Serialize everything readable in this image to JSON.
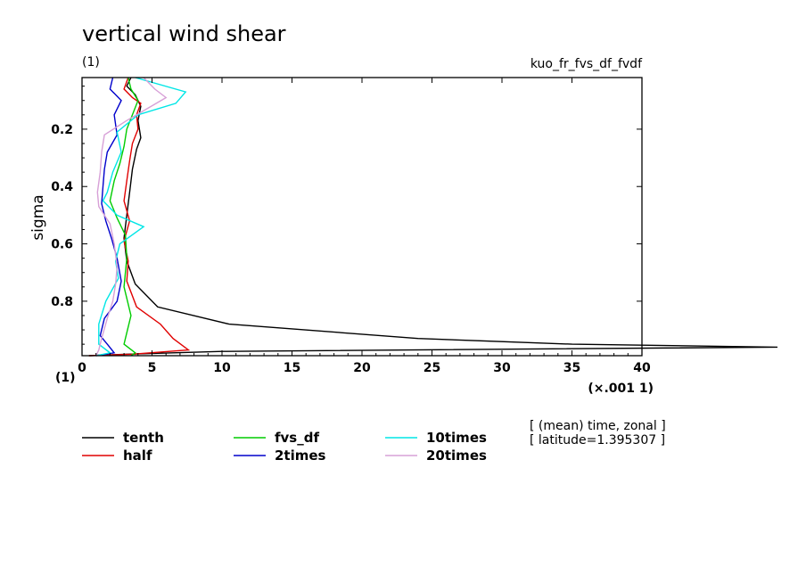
{
  "chart_data": {
    "type": "line",
    "title": "vertical wind shear",
    "subtitle_left": "(1)",
    "subtitle_right": "kuo_fr_fvs_df_fvdf",
    "xlabel": "",
    "x_unit_left": "(1)",
    "x_unit_right": "(×.001 1)",
    "ylabel": "sigma",
    "xlim": [
      0,
      40
    ],
    "ylim": [
      0.99,
      0.02
    ],
    "x_ticks": [
      "0",
      "5",
      "10",
      "15",
      "20",
      "25",
      "30",
      "35",
      "40"
    ],
    "y_ticks": [
      "0.2",
      "0.4",
      "0.6",
      "0.8"
    ],
    "info_lines": [
      "[ (mean) time, zonal ]",
      "[ latitude=1.395307 ]"
    ],
    "legend_placement": "bottom",
    "series": [
      {
        "name": "tenth",
        "color": "#000000",
        "points": [
          [
            3.5,
            0.02
          ],
          [
            3.2,
            0.05
          ],
          [
            3.8,
            0.08
          ],
          [
            4.2,
            0.12
          ],
          [
            4.0,
            0.17
          ],
          [
            4.2,
            0.23
          ],
          [
            3.9,
            0.27
          ],
          [
            3.6,
            0.34
          ],
          [
            3.4,
            0.42
          ],
          [
            3.2,
            0.5
          ],
          [
            3.0,
            0.58
          ],
          [
            3.2,
            0.66
          ],
          [
            3.8,
            0.74
          ],
          [
            5.4,
            0.82
          ],
          [
            10.5,
            0.88
          ],
          [
            24,
            0.93
          ],
          [
            35,
            0.95
          ],
          [
            50,
            0.96
          ],
          [
            10,
            0.975
          ],
          [
            3,
            0.985
          ],
          [
            0.5,
            0.99
          ]
        ]
      },
      {
        "name": "half",
        "color": "#e00000",
        "points": [
          [
            3.3,
            0.02
          ],
          [
            3.0,
            0.06
          ],
          [
            3.6,
            0.09
          ],
          [
            4.2,
            0.11
          ],
          [
            3.9,
            0.15
          ],
          [
            4.0,
            0.2
          ],
          [
            3.6,
            0.25
          ],
          [
            3.4,
            0.31
          ],
          [
            3.2,
            0.38
          ],
          [
            3.0,
            0.45
          ],
          [
            3.4,
            0.52
          ],
          [
            3.0,
            0.59
          ],
          [
            3.3,
            0.66
          ],
          [
            3.2,
            0.73
          ],
          [
            3.9,
            0.82
          ],
          [
            5.6,
            0.88
          ],
          [
            6.5,
            0.93
          ],
          [
            7.6,
            0.97
          ],
          [
            3.5,
            0.985
          ],
          [
            0.5,
            0.99
          ]
        ]
      },
      {
        "name": "fvs_df",
        "color": "#00cc00",
        "points": [
          [
            3.3,
            0.02
          ],
          [
            3.5,
            0.06
          ],
          [
            4.0,
            0.1
          ],
          [
            3.6,
            0.15
          ],
          [
            3.2,
            0.2
          ],
          [
            3.0,
            0.26
          ],
          [
            2.7,
            0.32
          ],
          [
            2.3,
            0.38
          ],
          [
            2.0,
            0.45
          ],
          [
            2.5,
            0.51
          ],
          [
            3.1,
            0.57
          ],
          [
            3.2,
            0.65
          ],
          [
            3.0,
            0.75
          ],
          [
            3.5,
            0.85
          ],
          [
            3.2,
            0.91
          ],
          [
            3.0,
            0.95
          ],
          [
            3.8,
            0.98
          ],
          [
            3.5,
            0.99
          ]
        ]
      },
      {
        "name": "2times",
        "color": "#0000cc",
        "points": [
          [
            2.2,
            0.02
          ],
          [
            2.0,
            0.06
          ],
          [
            2.8,
            0.1
          ],
          [
            2.3,
            0.15
          ],
          [
            2.5,
            0.22
          ],
          [
            1.8,
            0.28
          ],
          [
            1.6,
            0.34
          ],
          [
            1.5,
            0.4
          ],
          [
            1.4,
            0.46
          ],
          [
            1.7,
            0.52
          ],
          [
            2.1,
            0.58
          ],
          [
            2.5,
            0.65
          ],
          [
            2.8,
            0.73
          ],
          [
            2.5,
            0.8
          ],
          [
            1.6,
            0.86
          ],
          [
            1.3,
            0.92
          ],
          [
            1.8,
            0.95
          ],
          [
            2.3,
            0.98
          ],
          [
            1.0,
            0.99
          ]
        ]
      },
      {
        "name": "10times",
        "color": "#00e6e6",
        "points": [
          [
            3.8,
            0.02
          ],
          [
            7.4,
            0.07
          ],
          [
            6.7,
            0.11
          ],
          [
            4.0,
            0.15
          ],
          [
            2.5,
            0.21
          ],
          [
            2.8,
            0.28
          ],
          [
            2.2,
            0.35
          ],
          [
            1.8,
            0.42
          ],
          [
            1.5,
            0.45
          ],
          [
            2.5,
            0.5
          ],
          [
            4.4,
            0.54
          ],
          [
            2.7,
            0.6
          ],
          [
            2.4,
            0.66
          ],
          [
            2.6,
            0.72
          ],
          [
            1.7,
            0.8
          ],
          [
            1.2,
            0.88
          ],
          [
            1.2,
            0.95
          ],
          [
            2.0,
            0.98
          ],
          [
            1.0,
            0.99
          ]
        ]
      },
      {
        "name": "20times",
        "color": "#d7a0d7",
        "points": [
          [
            4.4,
            0.02
          ],
          [
            5.2,
            0.06
          ],
          [
            6.0,
            0.09
          ],
          [
            4.6,
            0.13
          ],
          [
            3.2,
            0.17
          ],
          [
            1.6,
            0.22
          ],
          [
            1.4,
            0.28
          ],
          [
            1.3,
            0.35
          ],
          [
            1.1,
            0.42
          ],
          [
            1.2,
            0.47
          ],
          [
            2.0,
            0.53
          ],
          [
            2.3,
            0.6
          ],
          [
            2.5,
            0.68
          ],
          [
            2.4,
            0.74
          ],
          [
            2.2,
            0.8
          ],
          [
            1.8,
            0.86
          ],
          [
            1.4,
            0.93
          ],
          [
            1.2,
            0.97
          ],
          [
            1.0,
            0.99
          ]
        ]
      }
    ]
  }
}
